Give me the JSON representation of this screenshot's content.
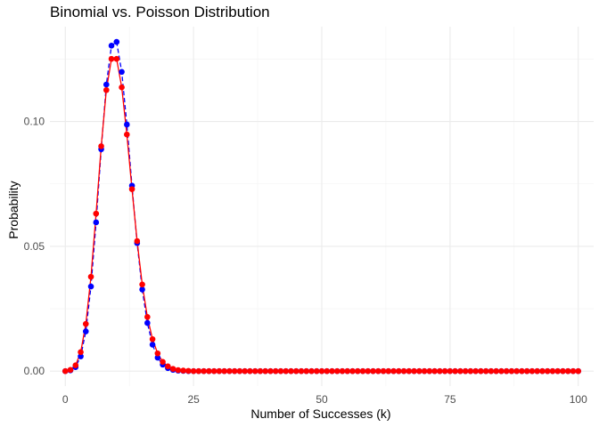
{
  "chart_data": {
    "type": "line",
    "title": "Binomial vs. Poisson Distribution",
    "xlabel": "Number of Successes (k)",
    "ylabel": "Probability",
    "xlim": [
      -3,
      103
    ],
    "ylim": [
      -0.006,
      0.138
    ],
    "x_ticks": [
      0,
      25,
      50,
      75,
      100
    ],
    "x_tick_labels": [
      "0",
      "25",
      "50",
      "75",
      "100"
    ],
    "y_ticks": [
      0.0,
      0.05,
      0.1
    ],
    "y_tick_labels": [
      "0.00",
      "0.05",
      "0.10"
    ],
    "grid": true,
    "x": [
      0,
      1,
      2,
      3,
      4,
      5,
      6,
      7,
      8,
      9,
      10,
      11,
      12,
      13,
      14,
      15,
      16,
      17,
      18,
      19,
      20,
      21,
      22,
      23,
      24,
      25,
      26,
      27,
      28,
      29,
      30,
      31,
      32,
      33,
      34,
      35,
      36,
      37,
      38,
      39,
      40,
      41,
      42,
      43,
      44,
      45,
      46,
      47,
      48,
      49,
      50,
      51,
      52,
      53,
      54,
      55,
      56,
      57,
      58,
      59,
      60,
      61,
      62,
      63,
      64,
      65,
      66,
      67,
      68,
      69,
      70,
      71,
      72,
      73,
      74,
      75,
      76,
      77,
      78,
      79,
      80,
      81,
      82,
      83,
      84,
      85,
      86,
      87,
      88,
      89,
      90,
      91,
      92,
      93,
      94,
      95,
      96,
      97,
      98,
      99,
      100
    ],
    "series": [
      {
        "color": "#0000ff",
        "values": [
          0.0,
          0.0003,
          0.0016,
          0.0059,
          0.0159,
          0.0339,
          0.0596,
          0.0889,
          0.1148,
          0.1304,
          0.1319,
          0.1199,
          0.0988,
          0.0743,
          0.0513,
          0.0327,
          0.0193,
          0.0106,
          0.0054,
          0.0026,
          0.0012,
          0.0005,
          0.0002,
          0.0001,
          0.0,
          0.0,
          0.0,
          0.0,
          0.0,
          0.0,
          0.0,
          0.0,
          0.0,
          0.0,
          0.0,
          0.0,
          0.0,
          0.0,
          0.0,
          0.0,
          0.0,
          0.0,
          0.0,
          0.0,
          0.0,
          0.0,
          0.0,
          0.0,
          0.0,
          0.0,
          0.0,
          0.0,
          0.0,
          0.0,
          0.0,
          0.0,
          0.0,
          0.0,
          0.0,
          0.0,
          0.0,
          0.0,
          0.0,
          0.0,
          0.0,
          0.0,
          0.0,
          0.0,
          0.0,
          0.0,
          0.0,
          0.0,
          0.0,
          0.0,
          0.0,
          0.0,
          0.0,
          0.0,
          0.0,
          0.0,
          0.0,
          0.0,
          0.0,
          0.0,
          0.0,
          0.0,
          0.0,
          0.0,
          0.0,
          0.0,
          0.0,
          0.0,
          0.0,
          0.0,
          0.0,
          0.0,
          0.0,
          0.0,
          0.0,
          0.0,
          0.0
        ]
      },
      {
        "color": "#ff0000",
        "values": [
          0.0,
          0.0005,
          0.0023,
          0.0076,
          0.0189,
          0.0378,
          0.0631,
          0.0901,
          0.1126,
          0.1251,
          0.1251,
          0.1137,
          0.0948,
          0.0729,
          0.0521,
          0.0347,
          0.0217,
          0.0128,
          0.0071,
          0.0037,
          0.0019,
          0.0009,
          0.0004,
          0.0002,
          0.0001,
          0.0,
          0.0,
          0.0,
          0.0,
          0.0,
          0.0,
          0.0,
          0.0,
          0.0,
          0.0,
          0.0,
          0.0,
          0.0,
          0.0,
          0.0,
          0.0,
          0.0,
          0.0,
          0.0,
          0.0,
          0.0,
          0.0,
          0.0,
          0.0,
          0.0,
          0.0,
          0.0,
          0.0,
          0.0,
          0.0,
          0.0,
          0.0,
          0.0,
          0.0,
          0.0,
          0.0,
          0.0,
          0.0,
          0.0,
          0.0,
          0.0,
          0.0,
          0.0,
          0.0,
          0.0,
          0.0,
          0.0,
          0.0,
          0.0,
          0.0,
          0.0,
          0.0,
          0.0,
          0.0,
          0.0,
          0.0,
          0.0,
          0.0,
          0.0,
          0.0,
          0.0,
          0.0,
          0.0,
          0.0,
          0.0,
          0.0,
          0.0,
          0.0,
          0.0,
          0.0,
          0.0,
          0.0,
          0.0,
          0.0,
          0.0,
          0.0
        ]
      }
    ]
  }
}
